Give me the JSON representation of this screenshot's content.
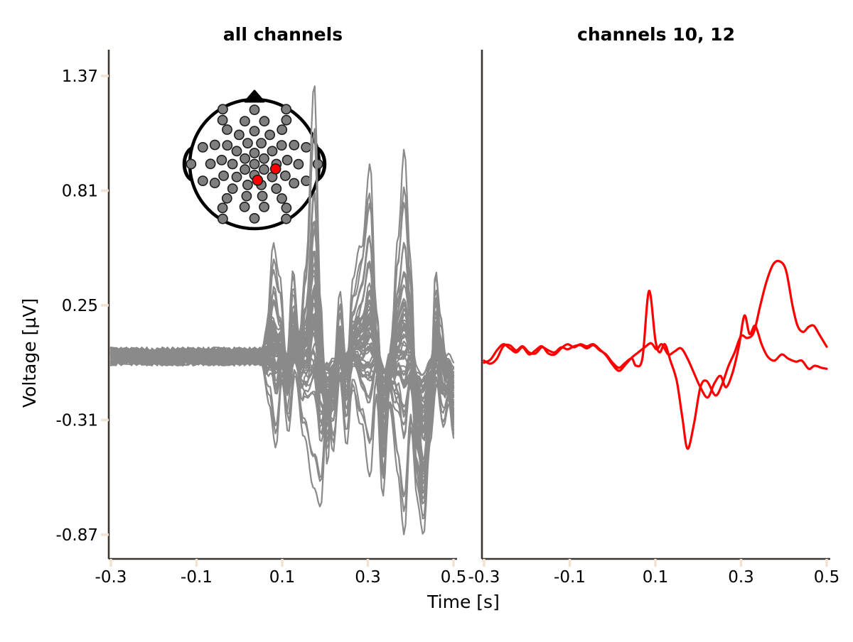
{
  "labels": {
    "xlabel": "Time [s]",
    "ylabel": "Voltage [µV]"
  },
  "styles": {
    "background": "#ffffff",
    "trace_gray": "#8a8a8a",
    "trace_red": "#ff0000",
    "spine_color": "#3a352e",
    "tick_color": "#f2e2d0",
    "text_color": "#000000",
    "sensor_fill": "#7f7f7f",
    "sensor_stroke": "#1c1c1c",
    "head_outline": "#000000",
    "inset_face": "#ffffff"
  },
  "chart_data": [
    {
      "type": "line",
      "title": "all channels",
      "xlabel": "Time [s]",
      "ylabel": "Voltage [µV]",
      "xlim": [
        -0.3,
        0.5
      ],
      "ylim": [
        -0.99,
        1.5
      ],
      "xticks": [
        -0.3,
        -0.1,
        0.1,
        0.3,
        0.5
      ],
      "xtick_labels": [
        "-0.3",
        "-0.1",
        "0.1",
        "0.3",
        "0.5"
      ],
      "yticks": [
        1.37,
        0.81,
        0.25,
        -0.31,
        -0.87
      ],
      "ytick_labels": [
        "1.37",
        "0.81",
        "0.25",
        "-0.31",
        "-0.87"
      ],
      "grid": false,
      "legend": false,
      "n_channels": 60,
      "stimulus_onset_s": 0.05,
      "baseline_noise_uv": 0.045,
      "envelope_top": [
        [
          -0.3,
          0
        ],
        [
          0.05,
          0
        ],
        [
          0.065,
          0.15
        ],
        [
          0.08,
          0.55
        ],
        [
          0.095,
          0.35
        ],
        [
          0.11,
          -0.05
        ],
        [
          0.125,
          0.45
        ],
        [
          0.14,
          0.1
        ],
        [
          0.155,
          0.45
        ],
        [
          0.175,
          1.37
        ],
        [
          0.19,
          0.3
        ],
        [
          0.205,
          -0.55
        ],
        [
          0.22,
          -0.1
        ],
        [
          0.235,
          0.3
        ],
        [
          0.25,
          -0.05
        ],
        [
          0.265,
          0.35
        ],
        [
          0.285,
          0.55
        ],
        [
          0.305,
          0.97
        ],
        [
          0.32,
          0.2
        ],
        [
          0.34,
          -0.45
        ],
        [
          0.355,
          0.1
        ],
        [
          0.37,
          0.6
        ],
        [
          0.385,
          0.99
        ],
        [
          0.4,
          0.45
        ],
        [
          0.415,
          -0.35
        ],
        [
          0.43,
          -0.65
        ],
        [
          0.445,
          -0.3
        ],
        [
          0.458,
          0.46
        ],
        [
          0.47,
          0.2
        ],
        [
          0.485,
          -0.1
        ],
        [
          0.5,
          -0.38
        ]
      ],
      "envelope_bottom": [
        [
          -0.3,
          0
        ],
        [
          0.05,
          0
        ],
        [
          0.07,
          -0.2
        ],
        [
          0.085,
          -0.45
        ],
        [
          0.1,
          -0.1
        ],
        [
          0.115,
          -0.35
        ],
        [
          0.13,
          -0.05
        ],
        [
          0.15,
          -0.4
        ],
        [
          0.175,
          -0.62
        ],
        [
          0.19,
          -0.73
        ],
        [
          0.205,
          -0.25
        ],
        [
          0.22,
          -0.45
        ],
        [
          0.235,
          -0.1
        ],
        [
          0.25,
          -0.4
        ],
        [
          0.265,
          -0.15
        ],
        [
          0.285,
          -0.35
        ],
        [
          0.305,
          -0.56
        ],
        [
          0.32,
          -0.15
        ],
        [
          0.335,
          -0.69
        ],
        [
          0.35,
          -0.25
        ],
        [
          0.37,
          -0.55
        ],
        [
          0.385,
          -0.87
        ],
        [
          0.4,
          -0.35
        ],
        [
          0.415,
          -0.7
        ],
        [
          0.43,
          -0.87
        ],
        [
          0.445,
          -0.45
        ],
        [
          0.46,
          -0.15
        ],
        [
          0.475,
          -0.35
        ],
        [
          0.49,
          -0.22
        ],
        [
          0.5,
          -0.4
        ]
      ],
      "inset": {
        "kind": "sensor-topomap",
        "highlighted_channels": [
          10,
          12
        ],
        "sensor_radius_rel": 0.072,
        "rings": [
          {
            "r": 0.0,
            "n": 1,
            "a0": 0
          },
          {
            "r": 0.17,
            "n": 6,
            "a0": -90
          },
          {
            "r": 0.34,
            "n": 10,
            "a0": -72
          },
          {
            "r": 0.51,
            "n": 13,
            "a0": -90
          },
          {
            "r": 0.68,
            "n": 14,
            "a0": -77
          },
          {
            "r": 0.84,
            "n": 10,
            "a0": -90
          },
          {
            "r": 0.98,
            "n": 6,
            "a0": -60
          }
        ],
        "red_sensors": [
          [
            0.326,
            0.075
          ],
          [
            0.047,
            0.251
          ]
        ]
      }
    },
    {
      "type": "line",
      "title": "channels 10, 12",
      "xlabel": "Time [s]",
      "xlim": [
        -0.3,
        0.5
      ],
      "ylim": [
        -0.99,
        1.5
      ],
      "xticks": [
        -0.3,
        -0.1,
        0.1,
        0.3,
        0.5
      ],
      "xtick_labels": [
        "-0.3",
        "-0.1",
        "0.1",
        "0.3",
        "0.5"
      ],
      "grid": false,
      "legend": false,
      "series": [
        {
          "name": "channel 10",
          "points": [
            [
              -0.3,
              -0.03
            ],
            [
              -0.285,
              -0.015
            ],
            [
              -0.27,
              0.03
            ],
            [
              -0.255,
              0.06
            ],
            [
              -0.24,
              0.04
            ],
            [
              -0.225,
              0.02
            ],
            [
              -0.21,
              0.045
            ],
            [
              -0.195,
              0.01
            ],
            [
              -0.18,
              0.03
            ],
            [
              -0.165,
              0.05
            ],
            [
              -0.15,
              0.015
            ],
            [
              -0.135,
              0.01
            ],
            [
              -0.12,
              0.04
            ],
            [
              -0.105,
              0.06
            ],
            [
              -0.09,
              0.045
            ],
            [
              -0.075,
              0.06
            ],
            [
              -0.06,
              0.05
            ],
            [
              -0.045,
              0.06
            ],
            [
              -0.03,
              0.035
            ],
            [
              -0.015,
              0.005
            ],
            [
              0.0,
              -0.04
            ],
            [
              0.015,
              -0.07
            ],
            [
              0.03,
              -0.04
            ],
            [
              0.045,
              -0.005
            ],
            [
              0.06,
              0.02
            ],
            [
              0.075,
              0.045
            ],
            [
              0.09,
              0.065
            ],
            [
              0.103,
              0.035
            ],
            [
              0.115,
              0.06
            ],
            [
              0.13,
              0.01
            ],
            [
              0.145,
              0.025
            ],
            [
              0.16,
              0.04
            ],
            [
              0.175,
              -0.01
            ],
            [
              0.19,
              -0.08
            ],
            [
              0.205,
              -0.15
            ],
            [
              0.222,
              -0.2
            ],
            [
              0.238,
              -0.13
            ],
            [
              0.252,
              -0.095
            ],
            [
              0.265,
              -0.15
            ],
            [
              0.28,
              -0.08
            ],
            [
              0.295,
              0.05
            ],
            [
              0.308,
              0.2
            ],
            [
              0.32,
              0.11
            ],
            [
              0.333,
              0.15
            ],
            [
              0.348,
              0.06
            ],
            [
              0.362,
              0.0
            ],
            [
              0.378,
              -0.02
            ],
            [
              0.395,
              0.01
            ],
            [
              0.41,
              -0.01
            ],
            [
              0.428,
              -0.025
            ],
            [
              0.442,
              -0.02
            ],
            [
              0.458,
              -0.06
            ],
            [
              0.472,
              -0.045
            ],
            [
              0.488,
              -0.055
            ],
            [
              0.5,
              -0.06
            ]
          ]
        },
        {
          "name": "channel 12",
          "points": [
            [
              -0.3,
              -0.02
            ],
            [
              -0.285,
              -0.035
            ],
            [
              -0.27,
              -0.01
            ],
            [
              -0.255,
              0.05
            ],
            [
              -0.24,
              0.055
            ],
            [
              -0.225,
              0.03
            ],
            [
              -0.21,
              0.05
            ],
            [
              -0.195,
              0.02
            ],
            [
              -0.18,
              0.015
            ],
            [
              -0.165,
              0.045
            ],
            [
              -0.15,
              0.03
            ],
            [
              -0.135,
              0.02
            ],
            [
              -0.12,
              0.045
            ],
            [
              -0.105,
              0.035
            ],
            [
              -0.09,
              0.05
            ],
            [
              -0.075,
              0.055
            ],
            [
              -0.06,
              0.04
            ],
            [
              -0.045,
              0.055
            ],
            [
              -0.03,
              0.03
            ],
            [
              -0.015,
              0.01
            ],
            [
              0.0,
              -0.03
            ],
            [
              0.015,
              -0.055
            ],
            [
              0.03,
              -0.03
            ],
            [
              0.045,
              -0.01
            ],
            [
              0.055,
              -0.045
            ],
            [
              0.07,
              -0.005
            ],
            [
              0.085,
              0.32
            ],
            [
              0.1,
              0.08
            ],
            [
              0.11,
              0.02
            ],
            [
              0.122,
              0.06
            ],
            [
              0.135,
              -0.02
            ],
            [
              0.15,
              -0.12
            ],
            [
              0.163,
              -0.3
            ],
            [
              0.175,
              -0.45
            ],
            [
              0.19,
              -0.33
            ],
            [
              0.205,
              -0.15
            ],
            [
              0.22,
              -0.12
            ],
            [
              0.24,
              -0.19
            ],
            [
              0.255,
              -0.14
            ],
            [
              0.27,
              -0.05
            ],
            [
              0.285,
              0.02
            ],
            [
              0.3,
              0.1
            ],
            [
              0.315,
              0.09
            ],
            [
              0.33,
              0.12
            ],
            [
              0.345,
              0.25
            ],
            [
              0.36,
              0.37
            ],
            [
              0.375,
              0.45
            ],
            [
              0.39,
              0.465
            ],
            [
              0.405,
              0.42
            ],
            [
              0.42,
              0.25
            ],
            [
              0.432,
              0.15
            ],
            [
              0.445,
              0.12
            ],
            [
              0.458,
              0.145
            ],
            [
              0.47,
              0.15
            ],
            [
              0.482,
              0.11
            ],
            [
              0.5,
              0.048
            ]
          ]
        }
      ]
    }
  ]
}
